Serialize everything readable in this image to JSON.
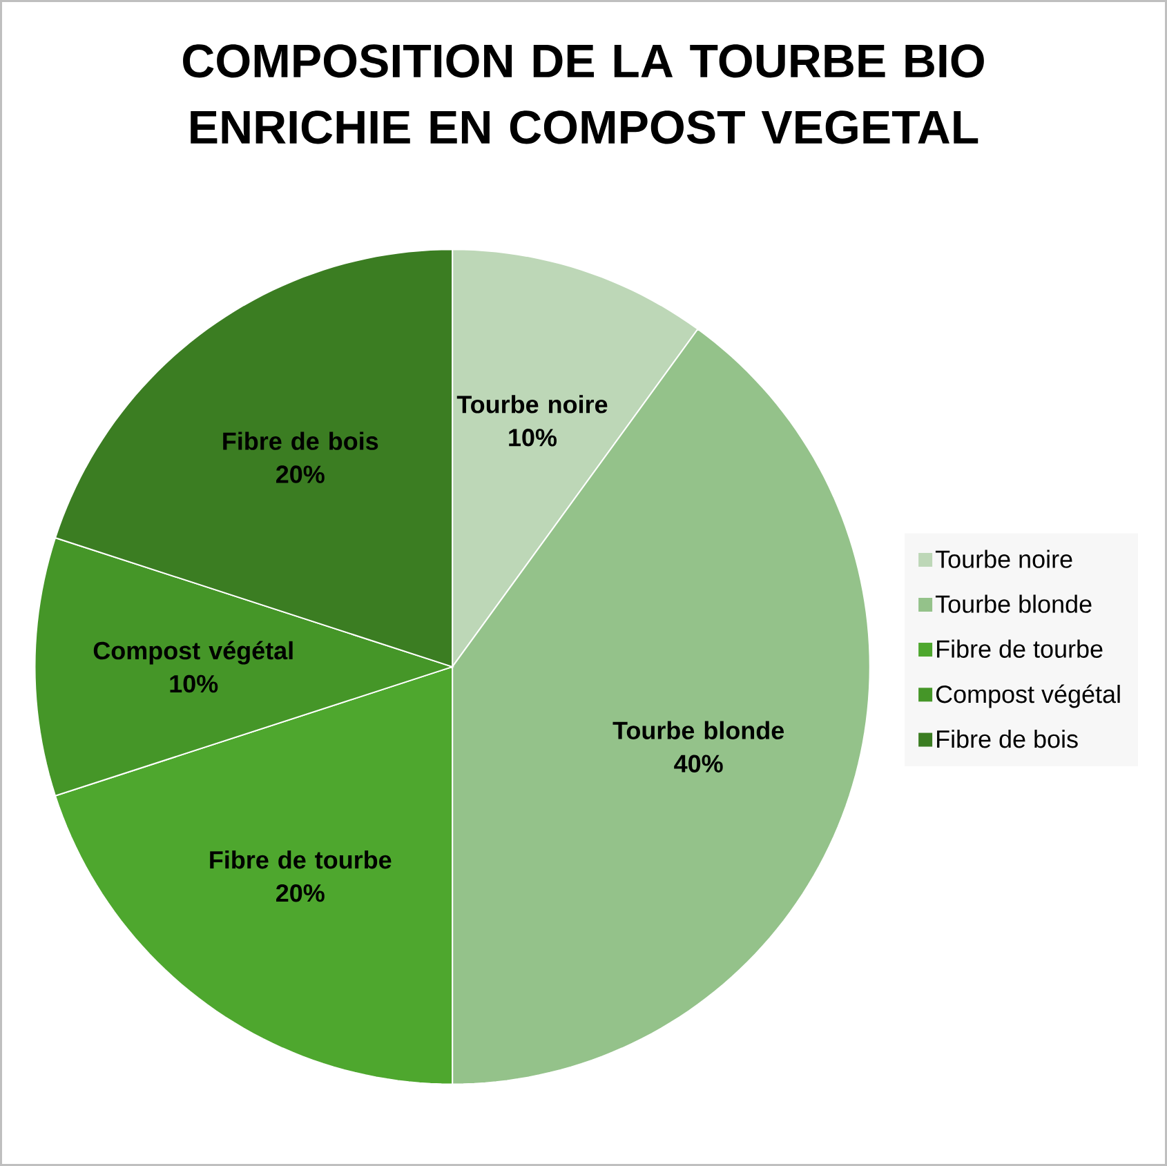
{
  "chart_data": {
    "type": "pie",
    "title": "COMPOSITION DE LA TOURBE BIO ENRICHIE EN COMPOST VEGETAL",
    "categories": [
      "Tourbe noire",
      "Tourbe blonde",
      "Fibre de tourbe",
      "Compost végétal",
      "Fibre de bois"
    ],
    "values": [
      10,
      40,
      20,
      10,
      20
    ],
    "value_labels": [
      "10%",
      "40%",
      "20%",
      "10%",
      "20%"
    ],
    "colors": [
      "#bdd7b7",
      "#94c28a",
      "#4ea72e",
      "#459628",
      "#3b7d22"
    ],
    "legend": "right"
  }
}
